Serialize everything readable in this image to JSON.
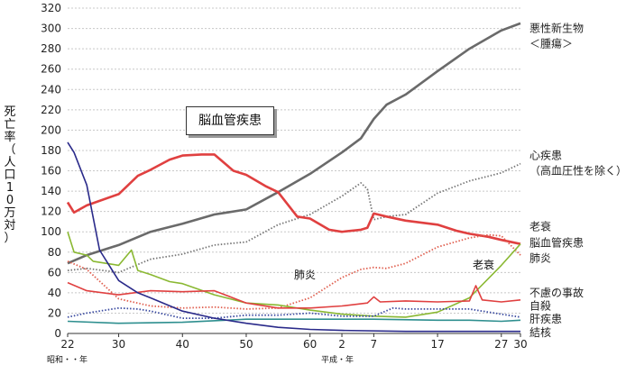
{
  "chart_data": {
    "type": "line",
    "ylabel": "死亡率（人口10万対）",
    "ylim": [
      0,
      320
    ],
    "yticks": [
      0,
      20,
      40,
      60,
      80,
      100,
      120,
      140,
      160,
      180,
      200,
      220,
      240,
      260,
      280,
      300,
      320
    ],
    "xlim": [
      1947,
      2018
    ],
    "xticks": [
      {
        "year": 1947,
        "label": "22"
      },
      {
        "year": 1955,
        "label": "30"
      },
      {
        "year": 1965,
        "label": "40"
      },
      {
        "year": 1975,
        "label": "50"
      },
      {
        "year": 1985,
        "label": "60"
      },
      {
        "year": 1990,
        "label": "2"
      },
      {
        "year": 1995,
        "label": "7"
      },
      {
        "year": 2005,
        "label": "17"
      },
      {
        "year": 2015,
        "label": "27"
      },
      {
        "year": 2018,
        "label": "30"
      }
    ],
    "era_labels": {
      "showa": "昭和・・年",
      "heisei": "平成・年"
    },
    "grid": true,
    "annotations": {
      "boxed": "脳血管疾患",
      "pneumonia": "肺炎",
      "senility": "老衰"
    },
    "series": [
      {
        "name": "悪性新生物＜腫瘍＞",
        "color": "#6a6a6a",
        "style": "solid",
        "x": [
          1947,
          1950,
          1955,
          1960,
          1965,
          1970,
          1975,
          1980,
          1985,
          1990,
          1993,
          1995,
          1997,
          2000,
          2005,
          2010,
          2015,
          2018
        ],
        "y": [
          69,
          77,
          87,
          100,
          108,
          117,
          122,
          139,
          157,
          178,
          192,
          211,
          225,
          235,
          258,
          280,
          298,
          305
        ]
      },
      {
        "name": "心疾患（高血圧性を除く）",
        "color": "#777777",
        "style": "dotted",
        "x": [
          1947,
          1950,
          1955,
          1960,
          1965,
          1970,
          1975,
          1980,
          1985,
          1990,
          1993,
          1994,
          1995,
          1997,
          2000,
          2005,
          2010,
          2015,
          2018
        ],
        "y": [
          62,
          64,
          60,
          73,
          78,
          87,
          90,
          107,
          117,
          135,
          148,
          142,
          112,
          115,
          117,
          138,
          150,
          158,
          167
        ]
      },
      {
        "name": "脳血管疾患",
        "color": "#e04040",
        "style": "solid",
        "x": [
          1947,
          1948,
          1950,
          1955,
          1958,
          1960,
          1963,
          1965,
          1968,
          1970,
          1973,
          1975,
          1978,
          1980,
          1983,
          1985,
          1988,
          1990,
          1993,
          1994,
          1995,
          1997,
          2000,
          2005,
          2008,
          2010,
          2013,
          2015,
          2018
        ],
        "y": [
          129,
          119,
          126,
          137,
          155,
          161,
          171,
          175,
          176,
          176,
          160,
          156,
          145,
          139,
          115,
          113,
          102,
          100,
          102,
          104,
          118,
          115,
          111,
          107,
          101,
          98,
          95,
          92,
          88
        ]
      },
      {
        "name": "肺炎",
        "color": "#e06050",
        "style": "dotted",
        "x": [
          1947,
          1950,
          1955,
          1960,
          1965,
          1970,
          1975,
          1980,
          1985,
          1990,
          1993,
          1995,
          1997,
          2000,
          2005,
          2010,
          2013,
          2015,
          2018
        ],
        "y": [
          71,
          63,
          34,
          27,
          25,
          26,
          24,
          25,
          35,
          55,
          63,
          65,
          64,
          69,
          85,
          94,
          97,
          96,
          77
        ]
      },
      {
        "name": "老衰",
        "color": "#8ab832",
        "style": "solid",
        "x": [
          1947,
          1948,
          1950,
          1951,
          1953,
          1955,
          1957,
          1958,
          1960,
          1963,
          1965,
          1970,
          1975,
          1980,
          1985,
          1990,
          1995,
          2000,
          2005,
          2010,
          2015,
          2018
        ],
        "y": [
          100,
          80,
          77,
          71,
          69,
          67,
          82,
          62,
          58,
          51,
          49,
          38,
          30,
          28,
          23,
          19,
          17,
          16,
          21,
          35,
          67,
          88
        ]
      },
      {
        "name": "不慮の事故",
        "color": "#e04040",
        "style": "solid",
        "x": [
          1947,
          1950,
          1955,
          1960,
          1965,
          1970,
          1975,
          1980,
          1985,
          1990,
          1994,
          1995,
          1996,
          2000,
          2005,
          2010,
          2011,
          2012,
          2015,
          2018
        ],
        "y": [
          50,
          42,
          38,
          42,
          41,
          42,
          30,
          25,
          25,
          27,
          30,
          36,
          31,
          32,
          31,
          32,
          47,
          33,
          31,
          33
        ]
      },
      {
        "name": "自殺",
        "color": "#3a4aa0",
        "style": "dotted",
        "x": [
          1947,
          1950,
          1955,
          1958,
          1960,
          1965,
          1970,
          1975,
          1980,
          1985,
          1990,
          1995,
          1998,
          2000,
          2005,
          2010,
          2015,
          2018
        ],
        "y": [
          16,
          20,
          25,
          24,
          22,
          15,
          15,
          18,
          18,
          20,
          17,
          17,
          25,
          24,
          24,
          24,
          19,
          16
        ]
      },
      {
        "name": "肝疾患",
        "color": "#2e8f8f",
        "style": "solid",
        "x": [
          1947,
          1955,
          1965,
          1975,
          1985,
          1995,
          2005,
          2010,
          2015,
          2018
        ],
        "y": [
          12,
          10,
          11,
          14,
          14,
          14,
          13,
          13,
          12,
          13
        ]
      },
      {
        "name": "結核",
        "color": "#2a2a8a",
        "style": "solid",
        "x": [
          1947,
          1948,
          1950,
          1952,
          1955,
          1958,
          1960,
          1965,
          1970,
          1975,
          1980,
          1985,
          1990,
          2000,
          2010,
          2018
        ],
        "y": [
          188,
          178,
          146,
          82,
          52,
          40,
          35,
          22,
          15,
          10,
          6,
          4,
          3,
          2,
          2,
          2
        ]
      }
    ],
    "legend_labels": [
      {
        "lines": [
          "悪性新生物",
          "＜腫瘍＞"
        ],
        "y": 300
      },
      {
        "lines": [
          "心疾患",
          "（高血圧性を除く）"
        ],
        "y": 175
      },
      {
        "lines": [
          "老衰"
        ],
        "y": 105
      },
      {
        "lines": [
          "脳血管疾患"
        ],
        "y": 89
      },
      {
        "lines": [
          "肺炎"
        ],
        "y": 74
      },
      {
        "lines": [
          "不慮の事故"
        ],
        "y": 40
      },
      {
        "lines": [
          "自殺"
        ],
        "y": 27
      },
      {
        "lines": [
          "肝疾患"
        ],
        "y": 14
      },
      {
        "lines": [
          "結核"
        ],
        "y": 1
      }
    ]
  }
}
